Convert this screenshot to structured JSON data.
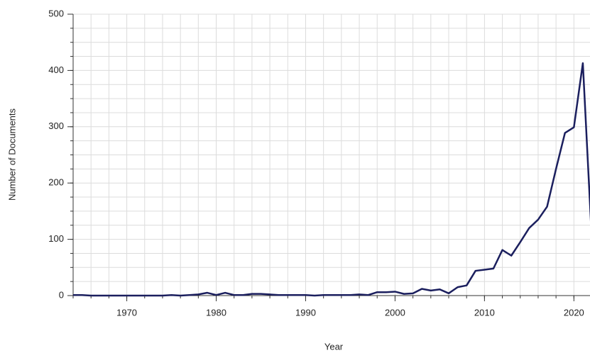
{
  "chart_data": {
    "type": "line",
    "x_label": "Year",
    "y_label": "Number of Documents",
    "x": [
      1964,
      1965,
      1966,
      1967,
      1968,
      1969,
      1970,
      1971,
      1972,
      1973,
      1974,
      1975,
      1976,
      1977,
      1978,
      1979,
      1980,
      1981,
      1982,
      1983,
      1984,
      1985,
      1986,
      1987,
      1988,
      1989,
      1990,
      1991,
      1992,
      1993,
      1994,
      1995,
      1996,
      1997,
      1998,
      1999,
      2000,
      2001,
      2002,
      2003,
      2004,
      2005,
      2006,
      2007,
      2008,
      2009,
      2010,
      2011,
      2012,
      2013,
      2014,
      2015,
      2016,
      2017,
      2018,
      2019,
      2020,
      2021,
      2022
    ],
    "series": [
      {
        "name": "Documents",
        "color": "#1b1f5e",
        "values": [
          1,
          1,
          0,
          0,
          0,
          0,
          0,
          0,
          0,
          0,
          0,
          1,
          0,
          1,
          2,
          5,
          1,
          5,
          1,
          1,
          3,
          3,
          2,
          1,
          1,
          1,
          1,
          0,
          1,
          1,
          1,
          1,
          2,
          1,
          6,
          6,
          7,
          3,
          4,
          12,
          9,
          11,
          4,
          15,
          18,
          44,
          46,
          48,
          81,
          71,
          95,
          120,
          135,
          158,
          225,
          289,
          299,
          413,
          100
        ]
      }
    ],
    "xlim": [
      1964,
      2021.8
    ],
    "ylim": [
      0,
      500
    ],
    "xticks": [
      1970,
      1980,
      1990,
      2000,
      2010,
      2020
    ],
    "yticks": [
      0,
      100,
      200,
      300,
      400,
      500
    ],
    "x_grid_step": 2,
    "y_grid_step": 25,
    "grid": true
  }
}
